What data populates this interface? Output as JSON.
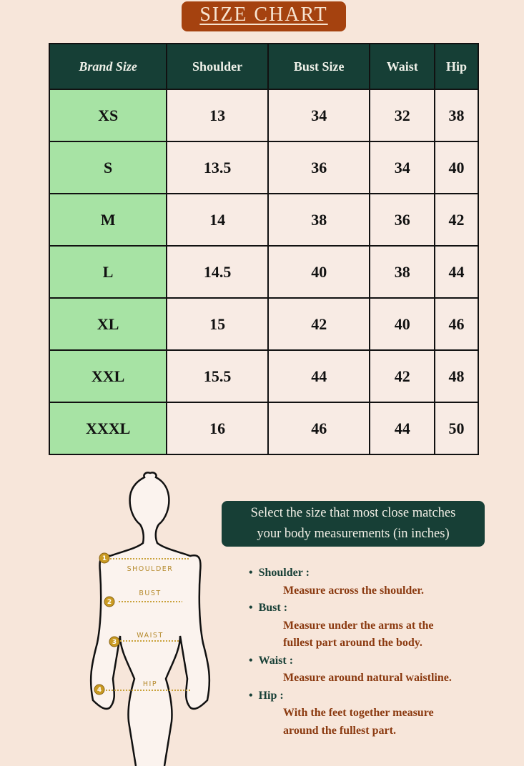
{
  "title": "SIZE CHART",
  "table": {
    "headers": [
      "Brand Size",
      "Shoulder",
      "Bust Size",
      "Waist",
      "Hip"
    ],
    "rows": [
      [
        "XS",
        "13",
        "34",
        "32",
        "38"
      ],
      [
        "S",
        "13.5",
        "36",
        "34",
        "40"
      ],
      [
        "M",
        "14",
        "38",
        "36",
        "42"
      ],
      [
        "L",
        "14.5",
        "40",
        "38",
        "44"
      ],
      [
        "XL",
        "15",
        "42",
        "40",
        "46"
      ],
      [
        "XXL",
        "15.5",
        "44",
        "42",
        "48"
      ],
      [
        "XXXL",
        "16",
        "46",
        "44",
        "50"
      ]
    ]
  },
  "note": {
    "line1": "Select the size that most close matches",
    "line2": "your body measurements (in inches)"
  },
  "figure": {
    "labels": [
      "SHOULDER",
      "BUST",
      "WAIST",
      "HIP"
    ],
    "markers": [
      "1",
      "2",
      "3",
      "4"
    ]
  },
  "instructions": [
    {
      "label": "Shoulder :",
      "desc": [
        "Measure across the shoulder."
      ]
    },
    {
      "label": "Bust :",
      "desc": [
        "Measure under the arms at the",
        "fullest part around the body."
      ]
    },
    {
      "label": "Waist :",
      "desc": [
        "Measure around natural waistline."
      ]
    },
    {
      "label": "Hip :",
      "desc": [
        "With the feet together measure",
        "around the fullest part."
      ]
    }
  ],
  "colors": {
    "background": "#f7e6da",
    "title_bg": "#a5420f",
    "header_bg": "#163f36",
    "size_cell": "#a7e3a4",
    "desc_text": "#8b3a10"
  }
}
